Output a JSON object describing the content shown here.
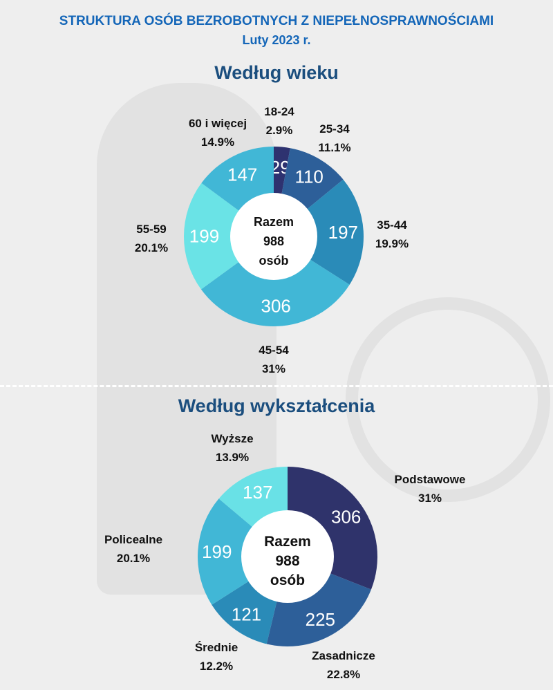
{
  "header": {
    "title": "STRUKTURA OSÓB BEZROBOTNYCH Z NIEPEŁNOSPRAWNOŚCIAMI",
    "subtitle": "Luty 2023 r."
  },
  "chart_data": [
    {
      "type": "pie",
      "title": "Według wieku",
      "center_label": [
        "Razem",
        "988",
        "osób"
      ],
      "categories": [
        "18-24",
        "25-34",
        "35-44",
        "45-54",
        "55-59",
        "60 i więcej"
      ],
      "values": [
        29,
        110,
        197,
        306,
        199,
        147
      ],
      "percents": [
        "2.9%",
        "11.1%",
        "19.9%",
        "31%",
        "20.1%",
        "14.9%"
      ],
      "colors": [
        "#2e3270",
        "#2d5f99",
        "#2a8bb8",
        "#41b7d6",
        "#6ae3e6",
        "#41b7d6"
      ]
    },
    {
      "type": "pie",
      "title": "Według wykształcenia",
      "center_label": [
        "Razem",
        "988",
        "osób"
      ],
      "categories": [
        "Podstawowe",
        "Zasadnicze",
        "Średnie",
        "Policealne",
        "Wyższe"
      ],
      "values": [
        306,
        225,
        121,
        199,
        137
      ],
      "percents": [
        "31%",
        "22.8%",
        "12.2%",
        "20.1%",
        "13.9%"
      ],
      "colors": [
        "#2f336b",
        "#2d5f99",
        "#2a8bb8",
        "#41b7d6",
        "#69e1e6"
      ]
    }
  ]
}
